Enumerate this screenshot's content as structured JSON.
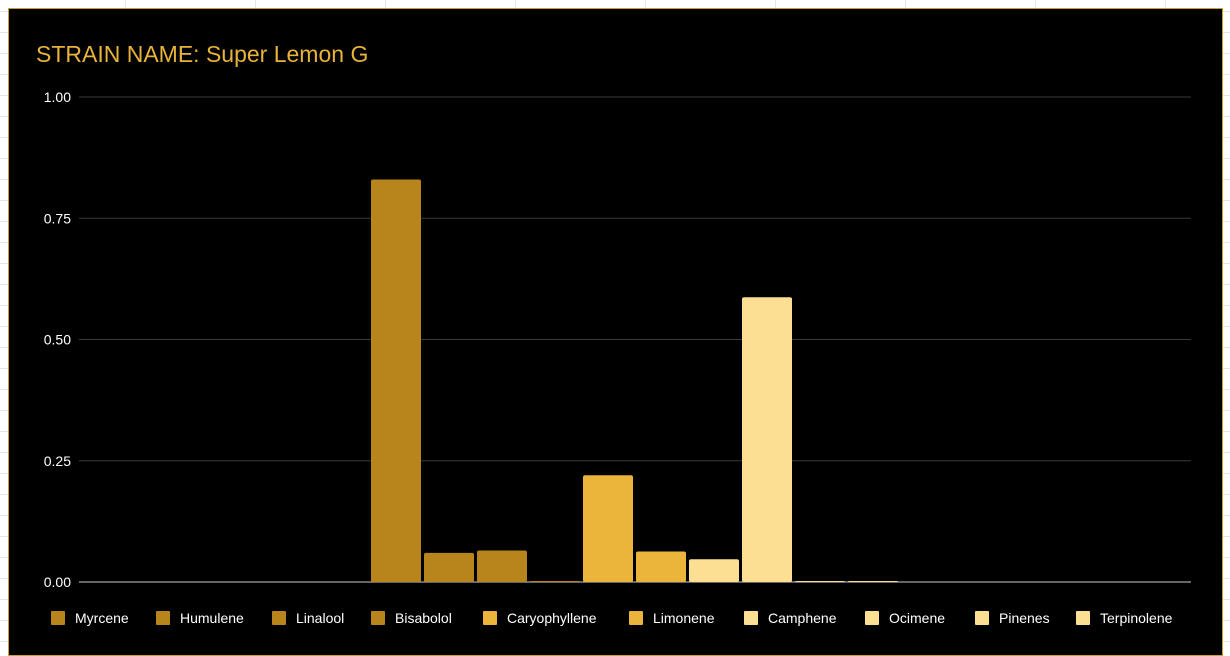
{
  "chart_data": {
    "type": "bar",
    "title": "STRAIN NAME: Super Lemon G",
    "xlabel": "",
    "ylabel": "",
    "ylim": [
      0,
      1
    ],
    "yticks": [
      "0.00",
      "0.25",
      "0.50",
      "0.75",
      "1.00"
    ],
    "ytick_values": [
      0,
      0.25,
      0.5,
      0.75,
      1.0
    ],
    "grid": true,
    "legend_position": "bottom",
    "categories": [
      "Myrcene",
      "Humulene",
      "Linalool",
      "Bisabolol",
      "Caryophyllene",
      "Limonene",
      "Camphene",
      "Ocimene",
      "Pinenes",
      "Terpinolene"
    ],
    "series": [
      {
        "name": "Myrcene",
        "value": 0.83,
        "color": "#b8841c"
      },
      {
        "name": "Humulene",
        "value": 0.06,
        "color": "#b8841c"
      },
      {
        "name": "Linalool",
        "value": 0.065,
        "color": "#b8841c"
      },
      {
        "name": "Bisabolol",
        "value": 0.002,
        "color": "#b8841c"
      },
      {
        "name": "Caryophyllene",
        "value": 0.22,
        "color": "#ebb43a"
      },
      {
        "name": "Limonene",
        "value": 0.063,
        "color": "#ebb43a"
      },
      {
        "name": "Camphene",
        "value": 0.047,
        "color": "#fddf94"
      },
      {
        "name": "Ocimene",
        "value": 0.587,
        "color": "#fddf94"
      },
      {
        "name": "Pinenes",
        "value": 0.002,
        "color": "#fddf94"
      },
      {
        "name": "Terpinolene",
        "value": 0,
        "color": "#fddf94"
      }
    ],
    "colors": {
      "background": "#000000",
      "title": "#e8b33a",
      "axis_text": "#ffffff",
      "gridline": "#3a3a3a",
      "baseline": "#cccccc"
    }
  }
}
